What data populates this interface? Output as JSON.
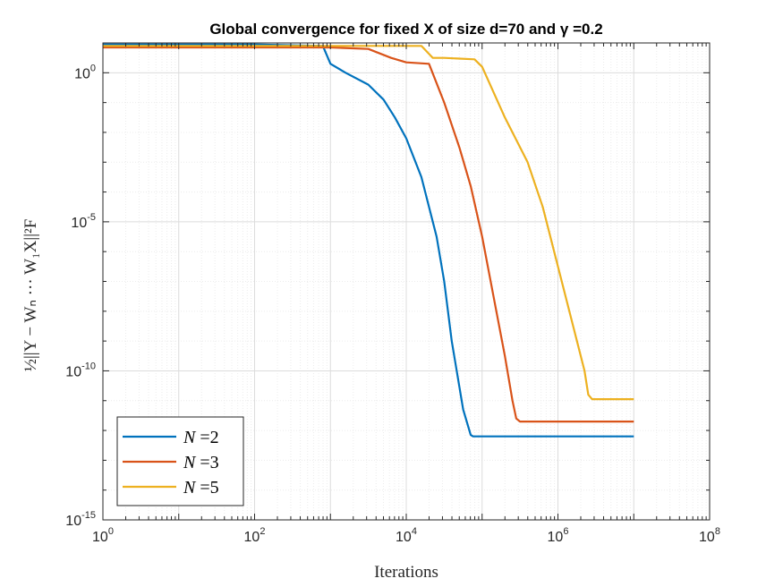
{
  "chart_data": {
    "type": "line",
    "title": "Global convergence for fixed X of size d=70 and γ =0.2",
    "xlabel": "Iterations",
    "ylabel": "½||Y − Wₙ ··· W₁X||²F",
    "xscale": "log",
    "yscale": "log",
    "xlim_exp": [
      0,
      8
    ],
    "ylim_exp": [
      -15,
      1
    ],
    "x_ticks": [
      {
        "base": "10",
        "exp": "0",
        "value": 0
      },
      {
        "base": "10",
        "exp": "2",
        "value": 2
      },
      {
        "base": "10",
        "exp": "4",
        "value": 4
      },
      {
        "base": "10",
        "exp": "6",
        "value": 6
      },
      {
        "base": "10",
        "exp": "8",
        "value": 8
      }
    ],
    "y_ticks": [
      {
        "base": "10",
        "exp": "0",
        "value": 0
      },
      {
        "base": "10",
        "exp": "-5",
        "value": -5
      },
      {
        "base": "10",
        "exp": "-10",
        "value": -10
      },
      {
        "base": "10",
        "exp": "-15",
        "value": -15
      }
    ],
    "grid": true,
    "legend_position": "bottom-left",
    "series": [
      {
        "name": "N =2",
        "legend_sym": "N",
        "legend_val": " =2",
        "color": "#0072BD",
        "log10_x": [
          0,
          2.0,
          2.9,
          3.0,
          3.2,
          3.5,
          3.7,
          3.85,
          4.0,
          4.2,
          4.4,
          4.5,
          4.6,
          4.75,
          4.85,
          4.88,
          7.0
        ],
        "log10_y": [
          0.95,
          0.95,
          0.9,
          0.3,
          0.0,
          -0.4,
          -0.9,
          -1.5,
          -2.2,
          -3.5,
          -5.5,
          -7.0,
          -9.0,
          -11.3,
          -12.15,
          -12.2,
          -12.2
        ]
      },
      {
        "name": "N =3",
        "legend_sym": "N",
        "legend_val": " =3",
        "color": "#D95319",
        "log10_x": [
          0,
          3.0,
          3.5,
          3.8,
          4.0,
          4.3,
          4.5,
          4.7,
          4.85,
          5.0,
          5.15,
          5.3,
          5.4,
          5.45,
          5.5,
          7.0
        ],
        "log10_y": [
          0.85,
          0.85,
          0.8,
          0.5,
          0.35,
          0.3,
          -1.0,
          -2.5,
          -3.8,
          -5.5,
          -7.5,
          -9.5,
          -11.0,
          -11.6,
          -11.7,
          -11.7
        ]
      },
      {
        "name": "N =5",
        "legend_sym": "N",
        "legend_val": " =5",
        "color": "#EDB120",
        "log10_x": [
          0,
          4.2,
          4.35,
          4.5,
          4.9,
          5.0,
          5.3,
          5.6,
          5.8,
          6.0,
          6.2,
          6.35,
          6.4,
          6.45,
          7.0
        ],
        "log10_y": [
          0.9,
          0.9,
          0.5,
          0.5,
          0.45,
          0.2,
          -1.5,
          -3.0,
          -4.5,
          -6.5,
          -8.5,
          -10.0,
          -10.8,
          -10.95,
          -10.95
        ]
      }
    ]
  }
}
